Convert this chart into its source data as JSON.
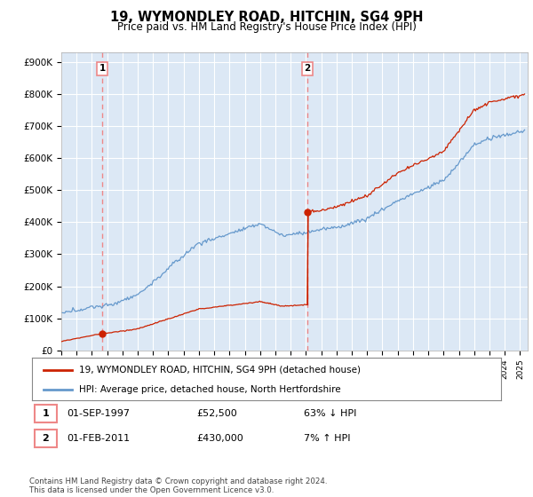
{
  "title": "19, WYMONDLEY ROAD, HITCHIN, SG4 9PH",
  "subtitle": "Price paid vs. HM Land Registry's House Price Index (HPI)",
  "ylim": [
    0,
    930000
  ],
  "yticks": [
    0,
    100000,
    200000,
    300000,
    400000,
    500000,
    600000,
    700000,
    800000,
    900000
  ],
  "ytick_labels": [
    "£0",
    "£100K",
    "£200K",
    "£300K",
    "£400K",
    "£500K",
    "£600K",
    "£700K",
    "£800K",
    "£900K"
  ],
  "xlim_start": 1995.0,
  "xlim_end": 2025.5,
  "sale1_date": 1997.67,
  "sale1_price": 52500,
  "sale2_date": 2011.08,
  "sale2_price": 430000,
  "hpi_color": "#6699cc",
  "price_color": "#cc2200",
  "dashed_color": "#ee8888",
  "legend_house_label": "19, WYMONDLEY ROAD, HITCHIN, SG4 9PH (detached house)",
  "legend_hpi_label": "HPI: Average price, detached house, North Hertfordshire",
  "footnote": "Contains HM Land Registry data © Crown copyright and database right 2024.\nThis data is licensed under the Open Government Licence v3.0.",
  "background_color": "#ffffff",
  "plot_bg_color": "#dce8f5"
}
